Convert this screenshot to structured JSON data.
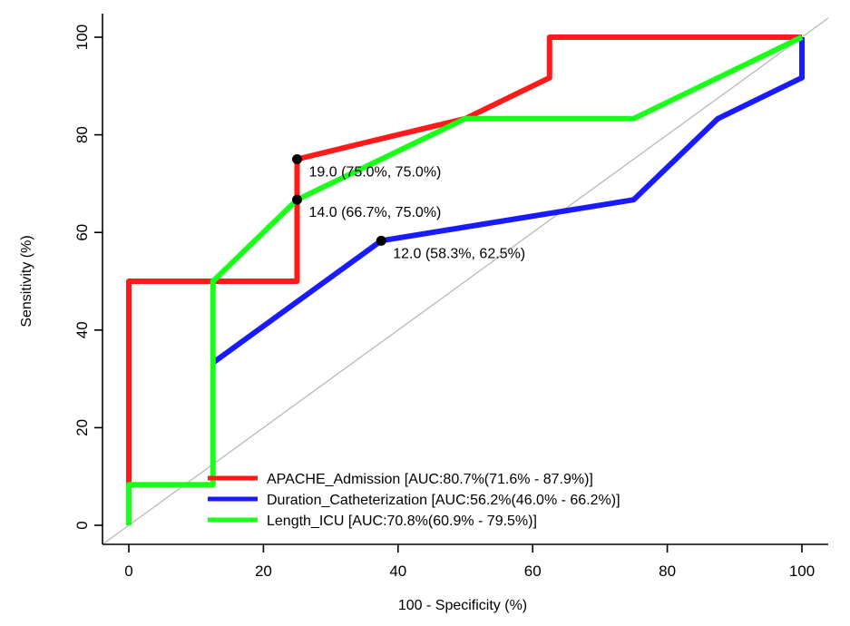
{
  "chart_data": {
    "type": "line",
    "title": "",
    "xlabel": "100 - Specificity (%)",
    "ylabel": "Sensitivity (%)",
    "xlim": [
      0,
      100
    ],
    "ylim": [
      0,
      100
    ],
    "xticks": [
      0,
      20,
      40,
      60,
      80,
      100
    ],
    "yticks": [
      0,
      20,
      40,
      60,
      80,
      100
    ],
    "grid": false,
    "diagonal_reference": true,
    "legend_position": "bottom-right",
    "series": [
      {
        "name": "APACHE_Admission [AUC:80.7%(71.6% - 87.9%)]",
        "color": "#ff1a1a",
        "points": [
          [
            0,
            8.3
          ],
          [
            0,
            50
          ],
          [
            25,
            50
          ],
          [
            25,
            75
          ],
          [
            37.5,
            79.2
          ],
          [
            50,
            83.3
          ],
          [
            62.5,
            91.7
          ],
          [
            62.5,
            100
          ],
          [
            100,
            100
          ]
        ]
      },
      {
        "name": "Duration_Catheterization [AUC:56.2%(46.0% - 66.2%)]",
        "color": "#1a1aff",
        "points": [
          [
            12.5,
            33.3
          ],
          [
            37.5,
            58.3
          ],
          [
            75,
            66.7
          ],
          [
            87.5,
            83.3
          ],
          [
            100,
            91.7
          ],
          [
            100,
            100
          ]
        ]
      },
      {
        "name": "Length_ICU [AUC:70.8%(60.9% - 79.5%)]",
        "color": "#1aff1a",
        "points": [
          [
            0,
            0
          ],
          [
            0,
            8.3
          ],
          [
            12.5,
            8.3
          ],
          [
            12.5,
            50
          ],
          [
            25,
            66.7
          ],
          [
            37.5,
            75
          ],
          [
            50,
            83.3
          ],
          [
            75,
            83.3
          ],
          [
            100,
            100
          ]
        ]
      }
    ],
    "annotations": [
      {
        "x": 25,
        "y": 75,
        "text": "19.0 (75.0%, 75.0%)"
      },
      {
        "x": 25,
        "y": 66.7,
        "text": "14.0 (66.7%, 75.0%)"
      },
      {
        "x": 37.5,
        "y": 58.3,
        "text": "12.0 (58.3%, 62.5%)"
      }
    ]
  }
}
